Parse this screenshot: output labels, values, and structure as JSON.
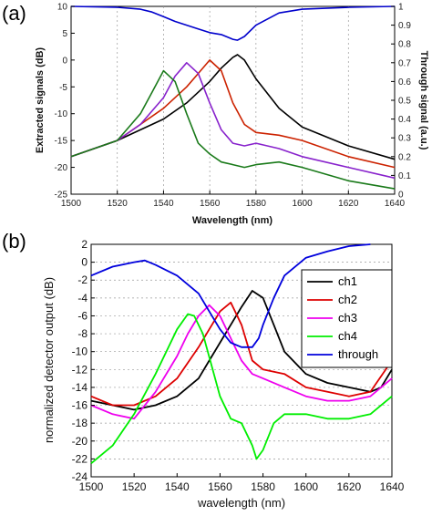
{
  "panels": {
    "a": "(a)",
    "b": "(b)"
  },
  "chart_data": [
    {
      "type": "line",
      "xlabel": "Wavelength (nm)",
      "ylabel": "Extracted signals (dB)",
      "y2label": "Through signal (a.u.)",
      "xlim": [
        1500,
        1640
      ],
      "ylim": [
        -25,
        10
      ],
      "y2lim": [
        0,
        1
      ],
      "xticks": [
        1500,
        1520,
        1540,
        1560,
        1580,
        1600,
        1620,
        1640
      ],
      "yticks": [
        -25,
        -20,
        -15,
        -10,
        -5,
        0,
        5,
        10
      ],
      "y2ticks": [
        0,
        0.1,
        0.2,
        0.3,
        0.4,
        0.5,
        0.6,
        0.7,
        0.8,
        0.9,
        1
      ],
      "xgrid": true,
      "series": [
        {
          "color": "#0000cc",
          "axis": "right",
          "x": [
            1500,
            1520,
            1530,
            1535,
            1540,
            1545,
            1550,
            1555,
            1560,
            1565,
            1570,
            1572,
            1575,
            1580,
            1590,
            1600,
            1620,
            1640
          ],
          "y": [
            1.0,
            0.995,
            0.985,
            0.97,
            0.945,
            0.92,
            0.9,
            0.88,
            0.86,
            0.85,
            0.825,
            0.82,
            0.84,
            0.9,
            0.965,
            0.985,
            0.995,
            1.0
          ]
        },
        {
          "color": "#000000",
          "axis": "left",
          "x": [
            1500,
            1520,
            1540,
            1550,
            1560,
            1565,
            1570,
            1572,
            1575,
            1580,
            1590,
            1600,
            1620,
            1640
          ],
          "y": [
            -18,
            -15,
            -11,
            -8,
            -4,
            -1.5,
            0.5,
            1,
            0,
            -3.5,
            -9,
            -12.5,
            -16,
            -18.5
          ]
        },
        {
          "color": "#cc2200",
          "axis": "left",
          "x": [
            1500,
            1520,
            1540,
            1550,
            1555,
            1560,
            1565,
            1570,
            1575,
            1580,
            1590,
            1600,
            1620,
            1640
          ],
          "y": [
            -18,
            -15,
            -9,
            -5,
            -2.5,
            0,
            -2,
            -8,
            -12,
            -13.5,
            -14,
            -15,
            -18,
            -20
          ]
        },
        {
          "color": "#8822cc",
          "axis": "left",
          "x": [
            1500,
            1520,
            1530,
            1540,
            1545,
            1550,
            1555,
            1560,
            1565,
            1570,
            1575,
            1580,
            1590,
            1600,
            1620,
            1640
          ],
          "y": [
            -18,
            -15,
            -12,
            -7,
            -3,
            -0.5,
            -2.5,
            -8,
            -13,
            -15.5,
            -16,
            -15.5,
            -16.5,
            -18,
            -20,
            -22
          ]
        },
        {
          "color": "#1a7a1a",
          "axis": "left",
          "x": [
            1500,
            1520,
            1530,
            1535,
            1540,
            1545,
            1550,
            1555,
            1560,
            1565,
            1570,
            1575,
            1580,
            1590,
            1600,
            1620,
            1640
          ],
          "y": [
            -18,
            -15,
            -10,
            -6,
            -2,
            -4,
            -10,
            -15.5,
            -17.5,
            -19,
            -19.5,
            -20,
            -19.5,
            -19,
            -20,
            -22.5,
            -24
          ]
        }
      ]
    },
    {
      "type": "line",
      "xlabel": "wavelength (nm)",
      "ylabel": "normalized detector output (dB)",
      "xlim": [
        1500,
        1640
      ],
      "ylim": [
        -24,
        2
      ],
      "xticks": [
        1500,
        1520,
        1540,
        1560,
        1580,
        1600,
        1620,
        1640
      ],
      "yticks": [
        -24,
        -22,
        -20,
        -18,
        -16,
        -14,
        -12,
        -10,
        -8,
        -6,
        -4,
        -2,
        0,
        2
      ],
      "ygrid": true,
      "legend": "top-right",
      "series": [
        {
          "name": "ch1",
          "color": "#000000",
          "x": [
            1500,
            1510,
            1520,
            1530,
            1540,
            1550,
            1555,
            1560,
            1565,
            1570,
            1575,
            1580,
            1585,
            1590,
            1600,
            1610,
            1620,
            1630,
            1635,
            1640
          ],
          "y": [
            -15.5,
            -16,
            -16.5,
            -16,
            -15,
            -13,
            -11,
            -9,
            -7,
            -5,
            -3.2,
            -4,
            -7,
            -10,
            -12.5,
            -13.5,
            -14,
            -14.5,
            -14,
            -12
          ]
        },
        {
          "name": "ch2",
          "color": "#dd0000",
          "x": [
            1500,
            1510,
            1520,
            1530,
            1540,
            1550,
            1555,
            1560,
            1565,
            1570,
            1575,
            1580,
            1590,
            1600,
            1610,
            1620,
            1630,
            1640
          ],
          "y": [
            -15,
            -16,
            -16,
            -15,
            -13,
            -9.5,
            -7.5,
            -5.5,
            -4.5,
            -7,
            -11,
            -12,
            -12.5,
            -14,
            -14.5,
            -15,
            -14.5,
            -11
          ]
        },
        {
          "name": "ch3",
          "color": "#ee00ee",
          "x": [
            1500,
            1510,
            1520,
            1530,
            1540,
            1545,
            1550,
            1555,
            1560,
            1565,
            1570,
            1575,
            1580,
            1590,
            1600,
            1610,
            1620,
            1630,
            1640
          ],
          "y": [
            -16,
            -17,
            -17.5,
            -14.5,
            -10.5,
            -8,
            -6,
            -4.8,
            -6,
            -8.5,
            -11,
            -12.5,
            -13,
            -14,
            -15,
            -15.5,
            -15.5,
            -15,
            -13
          ]
        },
        {
          "name": "ch4",
          "color": "#00ee00",
          "x": [
            1500,
            1510,
            1520,
            1530,
            1540,
            1545,
            1548,
            1552,
            1556,
            1560,
            1565,
            1570,
            1575,
            1577,
            1580,
            1585,
            1590,
            1600,
            1610,
            1620,
            1630,
            1640
          ],
          "y": [
            -22.5,
            -20.5,
            -17,
            -12.5,
            -7.5,
            -5.8,
            -6,
            -8,
            -11.5,
            -15,
            -17.5,
            -18,
            -20.5,
            -22,
            -21,
            -18,
            -17,
            -17,
            -17.5,
            -17.5,
            -17,
            -15
          ]
        },
        {
          "name": "through",
          "color": "#0000dd",
          "x": [
            1500,
            1510,
            1520,
            1525,
            1530,
            1540,
            1550,
            1555,
            1560,
            1565,
            1570,
            1575,
            1578,
            1580,
            1585,
            1590,
            1600,
            1610,
            1620,
            1630
          ],
          "y": [
            -1.5,
            -0.5,
            0,
            0.2,
            -0.3,
            -1.5,
            -3.5,
            -5.5,
            -7.5,
            -9,
            -9.5,
            -9.5,
            -8.5,
            -7,
            -4,
            -1.5,
            0.5,
            1.2,
            1.8,
            2
          ]
        }
      ]
    }
  ]
}
